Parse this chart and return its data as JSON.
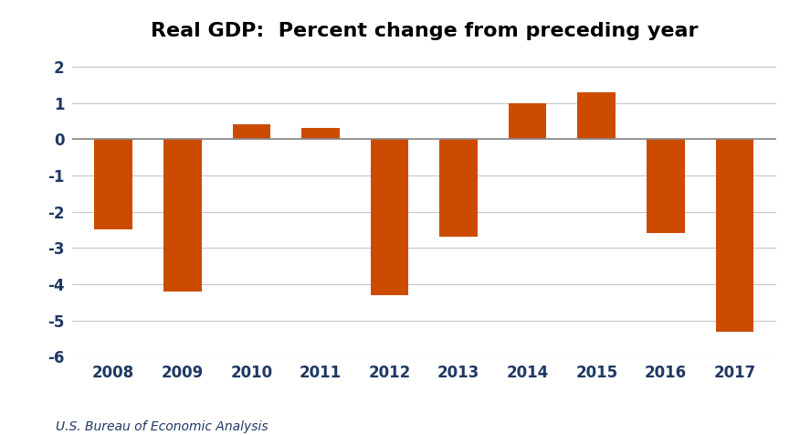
{
  "title": "Real GDP:  Percent change from preceding year",
  "categories": [
    "2008",
    "2009",
    "2010",
    "2011",
    "2012",
    "2013",
    "2014",
    "2015",
    "2016",
    "2017"
  ],
  "values": [
    -2.5,
    -4.2,
    0.4,
    0.3,
    -4.3,
    -2.7,
    1.0,
    1.3,
    -2.6,
    -5.3
  ],
  "bar_color": "#CC4B00",
  "background_color": "#FFFFFF",
  "ylim": [
    -6,
    2.4
  ],
  "yticks": [
    -6,
    -5,
    -4,
    -3,
    -2,
    -1,
    0,
    1,
    2
  ],
  "footnote": "U.S. Bureau of Economic Analysis",
  "footnote_fontsize": 10,
  "title_fontsize": 16,
  "tick_fontsize": 12,
  "tick_color": "#1F3864",
  "grid_color": "#C8C8C8",
  "zero_line_color": "#888888",
  "bar_width": 0.55
}
